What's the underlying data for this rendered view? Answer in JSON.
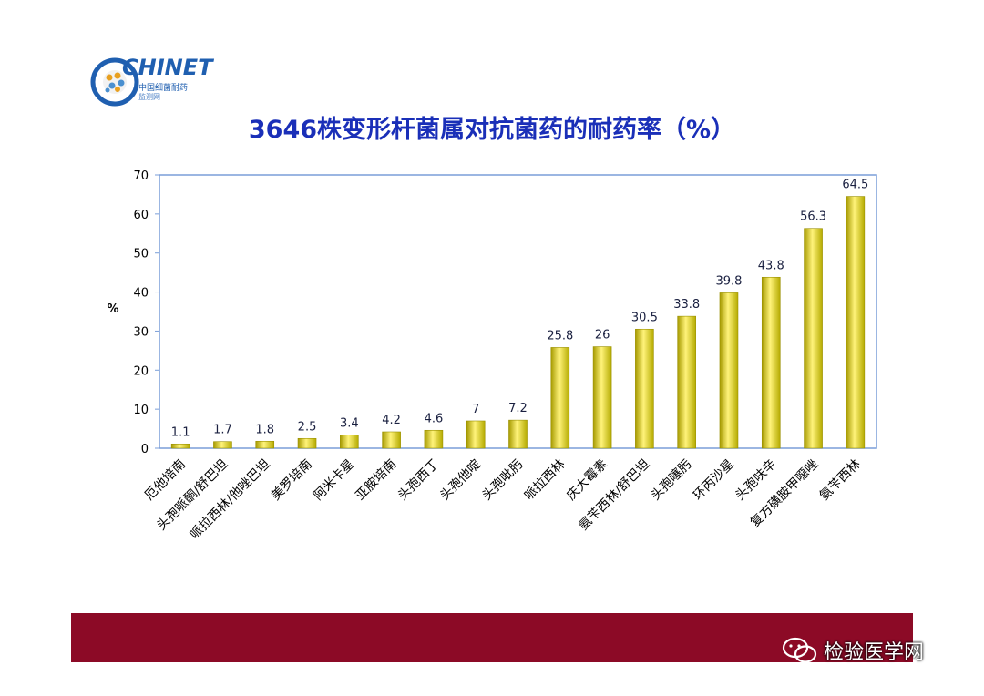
{
  "logo": {
    "text": "CHINET",
    "subtitle_line1": "中国细菌耐药",
    "subtitle_line2": "监测网"
  },
  "page_title": "3646株变形杆菌属对抗菌药的耐药率（%）",
  "watermark": {
    "text": "检验医学网",
    "icon": "wechat-icon"
  },
  "colors": {
    "bar": "#d4cc00",
    "bar_highlight": "#fff37a",
    "title": "#1a2fb8",
    "footer": "#8c0a26",
    "axis": "#7a9ed8"
  },
  "chart_data": {
    "type": "bar",
    "title": "3646株变形杆菌属对抗菌药的耐药率（%）",
    "xlabel": "",
    "ylabel": "%",
    "ylim": [
      0,
      70
    ],
    "yticks": [
      0,
      10,
      20,
      30,
      40,
      50,
      60,
      70
    ],
    "grid": false,
    "legend": "none",
    "categories": [
      "厄他培南",
      "头孢哌酮/舒巴坦",
      "哌拉西林/他唑巴坦",
      "美罗培南",
      "阿米卡星",
      "亚胺培南",
      "头孢西丁",
      "头孢他啶",
      "头孢吡肟",
      "哌拉西林",
      "庆大霉素",
      "氨苄西林/舒巴坦",
      "头孢噻肟",
      "环丙沙星",
      "头孢呋辛",
      "复方磺胺甲噁唑",
      "氨苄西林"
    ],
    "values": [
      1.1,
      1.7,
      1.8,
      2.5,
      3.4,
      4.2,
      4.6,
      7,
      7.2,
      25.8,
      26,
      30.5,
      33.8,
      39.8,
      43.8,
      56.3,
      64.5
    ],
    "data_labels": [
      "1.1",
      "1.7",
      "1.8",
      "2.5",
      "3.4",
      "4.2",
      "4.6",
      "7",
      "7.2",
      "25.8",
      "26",
      "30.5",
      "33.8",
      "39.8",
      "43.8",
      "56.3",
      "64.5"
    ]
  }
}
